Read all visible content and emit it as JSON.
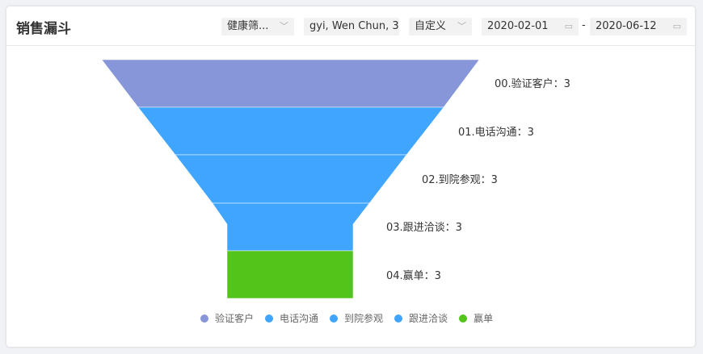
{
  "header": {
    "title": "销售漏斗",
    "filter1": "健康筛...",
    "filter2": "gyi, Wen Chun, 3",
    "filter3": "自定义",
    "date_start": "2020-02-01",
    "date_sep": "-",
    "date_end": "2020-06-12"
  },
  "funnel": {
    "stages": [
      {
        "name": "验证客户",
        "label": "00.验证客户：3",
        "value": 3,
        "color": "#8796d8"
      },
      {
        "name": "电话沟通",
        "label": "01.电话沟通：3",
        "value": 3,
        "color": "#3fa5ff"
      },
      {
        "name": "到院参观",
        "label": "02.到院参观：3",
        "value": 3,
        "color": "#3fa5ff"
      },
      {
        "name": "跟进洽谈",
        "label": "03.跟进洽谈：3",
        "value": 3,
        "color": "#3fa5ff"
      },
      {
        "name": "赢单",
        "label": "04.赢单：3",
        "value": 3,
        "color": "#52c41a"
      }
    ]
  }
}
